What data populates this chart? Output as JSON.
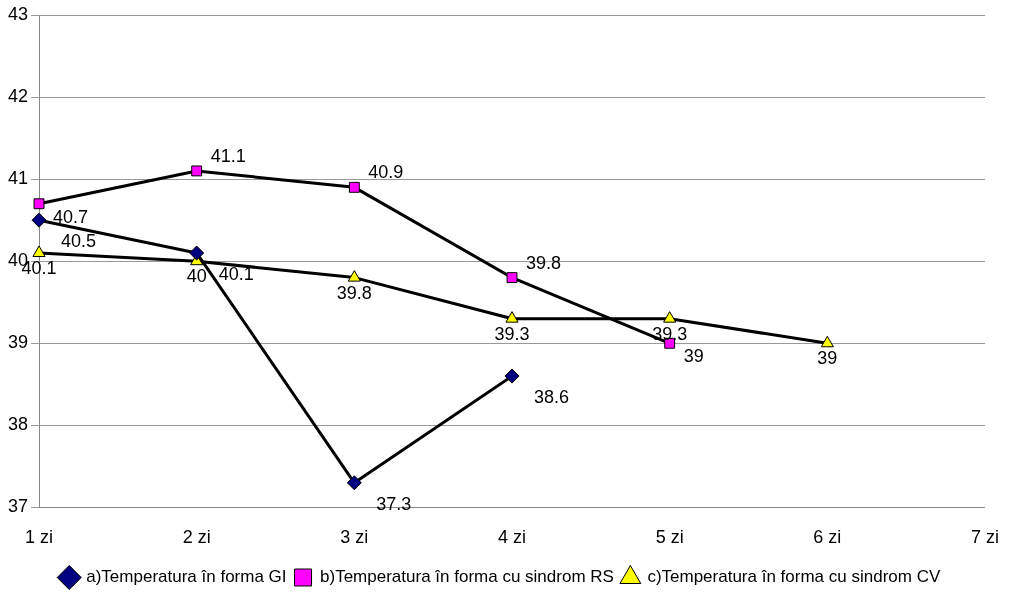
{
  "chart_data": {
    "type": "line",
    "categories": [
      "1 zi",
      "2 zi",
      "3 zi",
      "4 zi",
      "5 zi",
      "6 zi",
      "7 zi"
    ],
    "series": [
      {
        "name": "a)Temperatura în forma GI",
        "color": "#000080",
        "marker": "diamond",
        "values": [
          40.5,
          40.1,
          37.3,
          38.6,
          null,
          null,
          null
        ]
      },
      {
        "name": "b)Temperatura în forma cu sindrom RS",
        "color": "#ff00ff",
        "marker": "square",
        "values": [
          40.7,
          41.1,
          40.9,
          39.8,
          39,
          null,
          null
        ]
      },
      {
        "name": "c)Temperatura în forma cu sindrom CV",
        "color": "#ffff00",
        "marker": "triangle",
        "values": [
          40.1,
          40,
          39.8,
          39.3,
          39.3,
          39,
          null
        ]
      }
    ],
    "ylim": [
      37,
      43
    ],
    "yticks": [
      37,
      38,
      39,
      40,
      41,
      42,
      43
    ],
    "grid": "y",
    "legend": "bottom",
    "data_labels": true,
    "line_style": "solid"
  }
}
